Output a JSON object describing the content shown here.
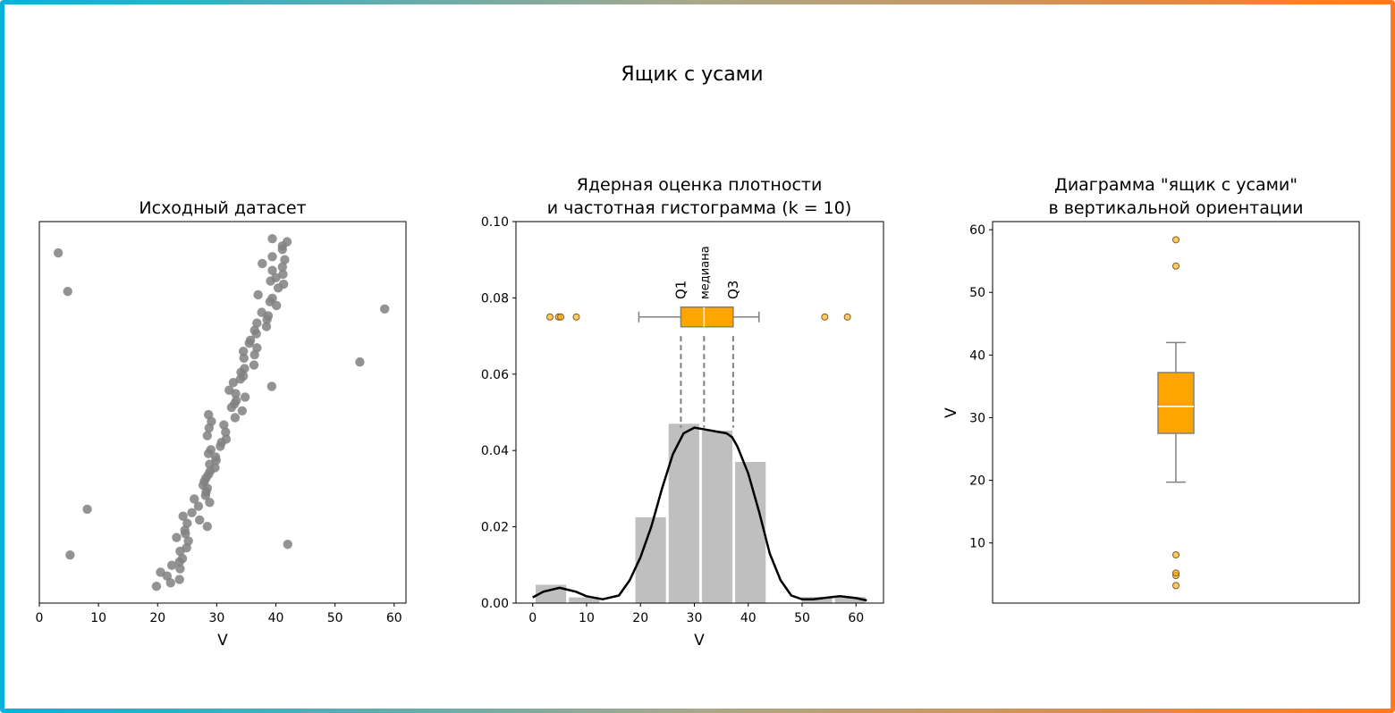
{
  "title": "Ящик с усами",
  "colors": {
    "points": "#808080",
    "hist": "#bfbfbf",
    "box": "#ffa500",
    "whisker": "#808080",
    "kde": "#000000",
    "border_left": "#08b2dc",
    "border_right": "#ff7a22"
  },
  "chart_data": [
    {
      "type": "scatter",
      "title": "Исходный датасет",
      "xlabel": "V",
      "ylabel": "",
      "xlim": [
        0,
        62
      ],
      "ylim": [
        0,
        100
      ],
      "xticks": [
        "0",
        "10",
        "20",
        "30",
        "40",
        "50",
        "60"
      ],
      "y_ticks_shown": false,
      "grid": false,
      "points": [
        [
          3.2,
          91.8
        ],
        [
          4.8,
          81.7
        ],
        [
          8.1,
          24.6
        ],
        [
          5.2,
          12.6
        ],
        [
          58.4,
          77.1
        ],
        [
          54.2,
          63.2
        ],
        [
          42.0,
          15.4
        ],
        [
          39.3,
          56.8
        ],
        [
          39.4,
          95.5
        ],
        [
          41.9,
          94.7
        ],
        [
          41.1,
          93.6
        ],
        [
          41.1,
          92.7
        ],
        [
          39.4,
          90.8
        ],
        [
          37.7,
          89.0
        ],
        [
          41.5,
          90.0
        ],
        [
          41.1,
          88.1
        ],
        [
          39.4,
          87.2
        ],
        [
          41.2,
          86.2
        ],
        [
          40.0,
          85.3
        ],
        [
          39.1,
          84.4
        ],
        [
          41.3,
          83.6
        ],
        [
          40.4,
          82.6
        ],
        [
          37.0,
          80.8
        ],
        [
          39.4,
          79.9
        ],
        [
          39.0,
          79.0
        ],
        [
          40.1,
          78.0
        ],
        [
          37.6,
          76.2
        ],
        [
          38.7,
          75.3
        ],
        [
          38.5,
          74.3
        ],
        [
          36.8,
          73.4
        ],
        [
          38.4,
          72.5
        ],
        [
          36.4,
          71.5
        ],
        [
          36.7,
          70.6
        ],
        [
          35.7,
          68.9
        ],
        [
          35.5,
          68.1
        ],
        [
          36.8,
          66.9
        ],
        [
          34.5,
          66.0
        ],
        [
          36.4,
          65.1
        ],
        [
          34.6,
          64.2
        ],
        [
          36.3,
          62.4
        ],
        [
          34.7,
          61.5
        ],
        [
          34.1,
          60.5
        ],
        [
          34.5,
          59.5
        ],
        [
          34.0,
          58.7
        ],
        [
          32.8,
          57.8
        ],
        [
          32.1,
          55.8
        ],
        [
          33.2,
          54.9
        ],
        [
          34.8,
          54.0
        ],
        [
          33.3,
          53.1
        ],
        [
          33.0,
          52.2
        ],
        [
          32.5,
          51.3
        ],
        [
          34.3,
          50.4
        ],
        [
          33.1,
          48.6
        ],
        [
          28.6,
          49.4
        ],
        [
          29.1,
          47.6
        ],
        [
          31.2,
          46.7
        ],
        [
          28.7,
          45.9
        ],
        [
          31.5,
          44.8
        ],
        [
          28.4,
          43.9
        ],
        [
          31.6,
          43.0
        ],
        [
          30.8,
          42.1
        ],
        [
          30.6,
          41.1
        ],
        [
          29.0,
          40.2
        ],
        [
          28.6,
          39.2
        ],
        [
          29.8,
          38.3
        ],
        [
          29.9,
          37.4
        ],
        [
          28.8,
          36.4
        ],
        [
          29.7,
          35.5
        ],
        [
          28.9,
          34.6
        ],
        [
          28.6,
          33.7
        ],
        [
          28.2,
          32.8
        ],
        [
          27.9,
          31.9
        ],
        [
          27.7,
          30.9
        ],
        [
          28.4,
          30.1
        ],
        [
          28.2,
          29.1
        ],
        [
          28.1,
          28.2
        ],
        [
          26.2,
          27.3
        ],
        [
          28.8,
          26.4
        ],
        [
          26.9,
          25.4
        ],
        [
          25.8,
          23.7
        ],
        [
          24.3,
          22.8
        ],
        [
          27.1,
          21.8
        ],
        [
          25.0,
          20.9
        ],
        [
          28.4,
          20.1
        ],
        [
          24.6,
          19.1
        ],
        [
          24.7,
          18.2
        ],
        [
          23.2,
          17.2
        ],
        [
          25.2,
          16.3
        ],
        [
          24.9,
          14.5
        ],
        [
          23.8,
          13.6
        ],
        [
          24.2,
          11.7
        ],
        [
          23.7,
          10.8
        ],
        [
          22.4,
          9.9
        ],
        [
          23.8,
          9.0
        ],
        [
          20.5,
          8.1
        ],
        [
          21.6,
          7.1
        ],
        [
          23.7,
          6.2
        ],
        [
          22.2,
          5.3
        ],
        [
          19.8,
          4.4
        ]
      ]
    },
    {
      "type": "bar",
      "title_line1": "Ядерная оценка плотности",
      "title_line2": "и частотная гистограмма (k = 10)",
      "xlabel": "V",
      "xlim": [
        -3.1,
        65.1
      ],
      "ylim": [
        0,
        0.1
      ],
      "xticks": [
        "0",
        "10",
        "20",
        "30",
        "40",
        "50",
        "60"
      ],
      "yticks": [
        "0.00",
        "0.02",
        "0.04",
        "0.06",
        "0.08",
        "0.10"
      ],
      "bin_edges": [
        0.3,
        6.47,
        12.64,
        18.81,
        24.98,
        31.15,
        37.32,
        43.49,
        49.66,
        55.83,
        62.0
      ],
      "densities": [
        0.0048,
        0.0015,
        0,
        0.0225,
        0.047,
        0.0452,
        0.037,
        0,
        0.0016,
        0.0016
      ],
      "kde": [
        [
          0,
          0.0015
        ],
        [
          2,
          0.003
        ],
        [
          5,
          0.004
        ],
        [
          8,
          0.003
        ],
        [
          10,
          0.0018
        ],
        [
          13,
          0.001
        ],
        [
          16,
          0.002
        ],
        [
          18,
          0.006
        ],
        [
          20,
          0.012
        ],
        [
          22,
          0.02
        ],
        [
          24,
          0.03
        ],
        [
          26,
          0.039
        ],
        [
          28,
          0.0445
        ],
        [
          30,
          0.046
        ],
        [
          32,
          0.0455
        ],
        [
          34,
          0.045
        ],
        [
          36,
          0.0445
        ],
        [
          37,
          0.0435
        ],
        [
          38,
          0.041
        ],
        [
          40,
          0.034
        ],
        [
          42,
          0.024
        ],
        [
          44,
          0.013
        ],
        [
          46,
          0.006
        ],
        [
          48,
          0.002
        ],
        [
          50,
          0.001
        ],
        [
          52,
          0.001
        ],
        [
          55,
          0.0015
        ],
        [
          57,
          0.0018
        ],
        [
          60,
          0.0013
        ],
        [
          62,
          0.0007
        ]
      ],
      "boxplot": {
        "level": 0.075,
        "whisker_low": 19.7,
        "q1": 27.5,
        "median": 31.8,
        "q3": 37.2,
        "whisker_high": 42.0,
        "outliers": [
          3.2,
          4.8,
          5.2,
          8.1,
          54.2,
          58.4
        ]
      },
      "annotations": [
        "Q1",
        "медиана",
        "Q3"
      ]
    },
    {
      "type": "box",
      "title_line1": "Диаграмма \"ящик с усами\"",
      "title_line2": "в вертикальной ориентации",
      "ylabel": "V",
      "ylim": [
        0.4,
        61.3
      ],
      "yticks": [
        "10",
        "20",
        "30",
        "40",
        "50",
        "60"
      ],
      "whisker_low": 19.7,
      "q1": 27.5,
      "median": 31.8,
      "q3": 37.2,
      "whisker_high": 42.0,
      "outliers": [
        3.2,
        4.8,
        5.2,
        8.1,
        54.2,
        58.4
      ]
    }
  ]
}
